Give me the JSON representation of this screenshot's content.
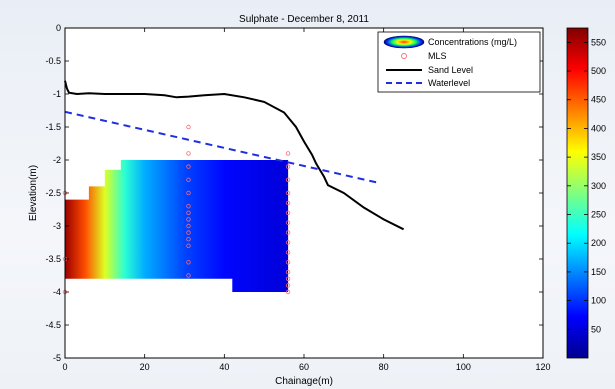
{
  "chart_data": {
    "type": "heatmap",
    "title": "Sulphate - December 8, 2011",
    "xlabel": "Chainage(m)",
    "ylabel": "Elevation(m)",
    "xlim": [
      0,
      120
    ],
    "ylim": [
      -5,
      0
    ],
    "x_ticks": [
      0,
      20,
      40,
      60,
      80,
      100,
      120
    ],
    "y_ticks": [
      0,
      -0.5,
      -1,
      -1.5,
      -2,
      -2.5,
      -3,
      -3.5,
      -4,
      -4.5,
      -5
    ],
    "colorbar": {
      "ticks": [
        50,
        100,
        150,
        200,
        250,
        300,
        350,
        400,
        450,
        500,
        550
      ],
      "range": [
        0,
        575
      ]
    },
    "legend": {
      "placement": "top-right",
      "entries": [
        {
          "label": "Concentrations (mg/L)",
          "kind": "contour"
        },
        {
          "label": "MLS",
          "kind": "marker",
          "color": "#ff6b6b"
        },
        {
          "label": "Sand Level",
          "kind": "line",
          "color": "#000000"
        },
        {
          "label": "Waterlevel",
          "kind": "dashed",
          "color": "#1f2fe0"
        }
      ]
    },
    "series": [
      {
        "name": "Sand Level",
        "x": [
          0,
          0.5,
          1,
          3,
          6,
          10,
          15,
          20,
          25,
          28,
          31,
          35,
          40,
          45,
          50,
          55,
          58,
          60,
          62,
          63,
          64,
          65,
          66,
          70,
          75,
          80,
          85
        ],
        "y": [
          -0.8,
          -0.92,
          -0.98,
          -1.0,
          -0.99,
          -1.0,
          -1.0,
          -1.0,
          -1.02,
          -1.05,
          -1.04,
          -1.02,
          -1.0,
          -1.05,
          -1.12,
          -1.28,
          -1.5,
          -1.72,
          -1.92,
          -2.05,
          -2.15,
          -2.25,
          -2.38,
          -2.5,
          -2.72,
          -2.9,
          -3.05
        ]
      },
      {
        "name": "Waterlevel",
        "x": [
          0,
          79
        ],
        "y": [
          -1.27,
          -2.35
        ]
      },
      {
        "name": "MLS",
        "x": [
          0,
          0,
          0,
          31,
          31,
          31,
          31,
          31,
          31,
          31,
          31,
          31,
          31,
          31,
          31,
          31,
          31,
          56,
          56,
          56,
          56,
          56,
          56,
          56,
          56,
          56,
          56,
          56,
          56,
          56,
          56,
          56
        ],
        "y": [
          -2.5,
          -3.5,
          -4.0,
          -1.5,
          -1.9,
          -2.1,
          -2.3,
          -2.5,
          -2.7,
          -2.8,
          -2.9,
          -3.0,
          -3.1,
          -3.2,
          -3.3,
          -3.55,
          -3.75,
          -1.9,
          -2.1,
          -2.3,
          -2.5,
          -2.65,
          -2.8,
          -2.95,
          -3.1,
          -3.25,
          -3.4,
          -3.55,
          -3.7,
          -3.8,
          -3.9,
          -4.0
        ]
      }
    ],
    "concentration_profile": {
      "x": [
        0,
        5,
        10,
        15,
        20,
        30,
        40,
        56
      ],
      "values": [
        560,
        460,
        340,
        240,
        170,
        110,
        75,
        50
      ]
    }
  }
}
